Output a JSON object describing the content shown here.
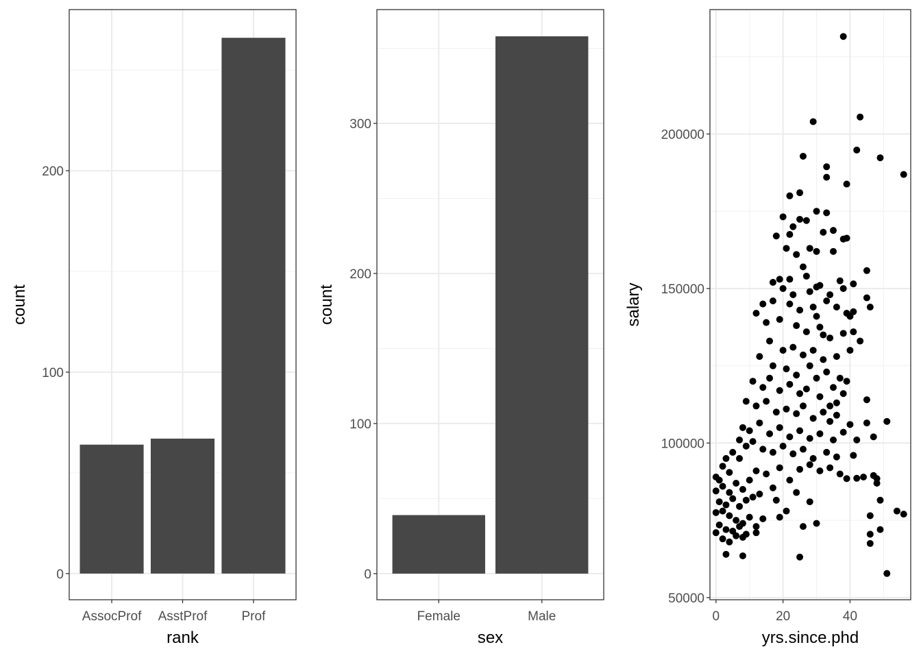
{
  "chart_data": [
    {
      "type": "bar",
      "xlabel": "rank",
      "ylabel": "count",
      "categories": [
        "AssocProf",
        "AsstProf",
        "Prof"
      ],
      "values": [
        64,
        67,
        266
      ],
      "ylim": [
        -13,
        280
      ],
      "yticks": [
        0,
        100,
        200
      ],
      "grid": true,
      "bar_color": "#474747"
    },
    {
      "type": "bar",
      "xlabel": "sex",
      "ylabel": "count",
      "categories": [
        "Female",
        "Male"
      ],
      "values": [
        39,
        358
      ],
      "ylim": [
        -17.4,
        375.8
      ],
      "yticks": [
        0,
        100,
        200,
        300
      ],
      "grid": true,
      "bar_color": "#474747"
    },
    {
      "type": "scatter",
      "xlabel": "yrs.since.phd",
      "ylabel": "salary",
      "xlim": [
        -1.8,
        58.1
      ],
      "ylim": [
        49300,
        240250
      ],
      "xticks": [
        0,
        20,
        40
      ],
      "yticks": [
        50000,
        100000,
        150000,
        200000
      ],
      "grid": true,
      "point_color": "#000000",
      "points": [
        [
          38,
          231545
        ],
        [
          43,
          205500
        ],
        [
          29,
          204000
        ],
        [
          42,
          194800
        ],
        [
          49,
          192300
        ],
        [
          56,
          186900
        ],
        [
          26,
          192800
        ],
        [
          33,
          189400
        ],
        [
          39,
          183800
        ],
        [
          25,
          181000
        ],
        [
          22,
          180000
        ],
        [
          33,
          186000
        ],
        [
          20,
          173200
        ],
        [
          30,
          175000
        ],
        [
          25,
          172400
        ],
        [
          33,
          174500
        ],
        [
          23,
          170000
        ],
        [
          27,
          172000
        ],
        [
          18,
          167000
        ],
        [
          22,
          167500
        ],
        [
          32,
          168200
        ],
        [
          35,
          168800
        ],
        [
          39,
          166300
        ],
        [
          38,
          166000
        ],
        [
          21,
          163000
        ],
        [
          24,
          161000
        ],
        [
          28,
          163000
        ],
        [
          35,
          162000
        ],
        [
          30,
          162000
        ],
        [
          26,
          157000
        ],
        [
          19,
          153000
        ],
        [
          17,
          152000
        ],
        [
          22,
          153000
        ],
        [
          27,
          154000
        ],
        [
          31,
          151000
        ],
        [
          37,
          152500
        ],
        [
          41,
          151500
        ],
        [
          45,
          155800
        ],
        [
          20,
          150000
        ],
        [
          23,
          148000
        ],
        [
          28,
          149000
        ],
        [
          30,
          150500
        ],
        [
          34,
          148000
        ],
        [
          38,
          150000
        ],
        [
          45,
          147000
        ],
        [
          12,
          142000
        ],
        [
          14,
          145000
        ],
        [
          17,
          146000
        ],
        [
          22,
          145000
        ],
        [
          25,
          143000
        ],
        [
          29,
          144000
        ],
        [
          33,
          146000
        ],
        [
          36,
          144000
        ],
        [
          40,
          141000
        ],
        [
          46,
          144000
        ],
        [
          15,
          139000
        ],
        [
          19,
          140000
        ],
        [
          24,
          138000
        ],
        [
          27,
          136000
        ],
        [
          31,
          137500
        ],
        [
          34,
          134000
        ],
        [
          38,
          135500
        ],
        [
          41,
          136000
        ],
        [
          43,
          133000
        ],
        [
          16,
          133000
        ],
        [
          20,
          130000
        ],
        [
          23,
          131000
        ],
        [
          26,
          128500
        ],
        [
          29,
          130000
        ],
        [
          32,
          127000
        ],
        [
          36,
          128000
        ],
        [
          40,
          130000
        ],
        [
          13,
          128000
        ],
        [
          17,
          125000
        ],
        [
          21,
          124000
        ],
        [
          24,
          122000
        ],
        [
          28,
          125000
        ],
        [
          30,
          121000
        ],
        [
          33,
          123000
        ],
        [
          37,
          121000
        ],
        [
          39,
          120000
        ],
        [
          11,
          120000
        ],
        [
          14,
          118000
        ],
        [
          16,
          121000
        ],
        [
          19,
          117000
        ],
        [
          22,
          119000
        ],
        [
          25,
          116000
        ],
        [
          27,
          117500
        ],
        [
          31,
          115000
        ],
        [
          35,
          118000
        ],
        [
          38,
          116000
        ],
        [
          45,
          114000
        ],
        [
          9,
          113500
        ],
        [
          12,
          112000
        ],
        [
          15,
          113500
        ],
        [
          18,
          110000
        ],
        [
          21,
          111000
        ],
        [
          24,
          109500
        ],
        [
          26,
          112000
        ],
        [
          29,
          108000
        ],
        [
          32,
          110000
        ],
        [
          34,
          107000
        ],
        [
          36,
          109000
        ],
        [
          40,
          106000
        ],
        [
          45,
          106500
        ],
        [
          51,
          107000
        ],
        [
          8,
          105000
        ],
        [
          10,
          104000
        ],
        [
          13,
          106500
        ],
        [
          16,
          103000
        ],
        [
          19,
          105000
        ],
        [
          22,
          102000
        ],
        [
          25,
          104000
        ],
        [
          28,
          101500
        ],
        [
          31,
          103000
        ],
        [
          35,
          101000
        ],
        [
          38,
          103500
        ],
        [
          42,
          101000
        ],
        [
          47,
          102000
        ],
        [
          7,
          101000
        ],
        [
          9,
          99000
        ],
        [
          11,
          100500
        ],
        [
          14,
          98000
        ],
        [
          17,
          97000
        ],
        [
          20,
          99000
        ],
        [
          23,
          96500
        ],
        [
          26,
          98000
        ],
        [
          29,
          95000
        ],
        [
          33,
          97000
        ],
        [
          36,
          95500
        ],
        [
          41,
          96000
        ],
        [
          5,
          97000
        ],
        [
          7,
          95000
        ],
        [
          3,
          95000
        ],
        [
          2,
          92500
        ],
        [
          4,
          90500
        ],
        [
          1,
          88000
        ],
        [
          0,
          89000
        ],
        [
          2,
          86000
        ],
        [
          4,
          84000
        ],
        [
          6,
          87000
        ],
        [
          8,
          85000
        ],
        [
          10,
          88000
        ],
        [
          12,
          91000
        ],
        [
          15,
          90000
        ],
        [
          19,
          92000
        ],
        [
          22,
          88000
        ],
        [
          25,
          91500
        ],
        [
          28,
          93000
        ],
        [
          31,
          91000
        ],
        [
          34,
          92000
        ],
        [
          37,
          90000
        ],
        [
          39,
          88500
        ],
        [
          42,
          88600
        ],
        [
          47,
          89500
        ],
        [
          48,
          88500
        ],
        [
          0,
          84500
        ],
        [
          1,
          81000
        ],
        [
          3,
          80000
        ],
        [
          5,
          82000
        ],
        [
          7,
          79500
        ],
        [
          9,
          81500
        ],
        [
          11,
          82500
        ],
        [
          13,
          83500
        ],
        [
          17,
          85500
        ],
        [
          19,
          76000
        ],
        [
          21,
          78000
        ],
        [
          2,
          78000
        ],
        [
          0,
          77500
        ],
        [
          4,
          76500
        ],
        [
          6,
          75000
        ],
        [
          8,
          74000
        ],
        [
          10,
          76000
        ],
        [
          12,
          73000
        ],
        [
          14,
          75500
        ],
        [
          1,
          73500
        ],
        [
          3,
          72000
        ],
        [
          5,
          71500
        ],
        [
          7,
          73000
        ],
        [
          9,
          70500
        ],
        [
          0,
          71000
        ],
        [
          2,
          69000
        ],
        [
          4,
          68000
        ],
        [
          6,
          70000
        ],
        [
          8,
          69500
        ],
        [
          12,
          71000
        ],
        [
          18,
          81500
        ],
        [
          28,
          81000
        ],
        [
          24,
          84000
        ],
        [
          46,
          76500
        ],
        [
          49,
          81500
        ],
        [
          54,
          78000
        ],
        [
          56,
          77000
        ],
        [
          46,
          70500
        ],
        [
          49,
          72000
        ],
        [
          46,
          67500
        ],
        [
          30,
          74000
        ],
        [
          26,
          73000
        ],
        [
          3,
          64000
        ],
        [
          8,
          63500
        ],
        [
          25,
          63100
        ],
        [
          51,
          57800
        ],
        [
          44,
          89000
        ],
        [
          48,
          87000
        ],
        [
          39,
          142000
        ],
        [
          41,
          142500
        ],
        [
          32,
          135000
        ],
        [
          34,
          112000
        ],
        [
          36,
          113000
        ],
        [
          30,
          141000
        ]
      ]
    }
  ]
}
